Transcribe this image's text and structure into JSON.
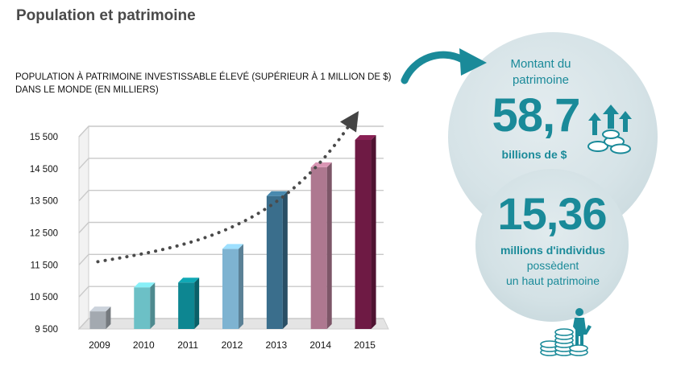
{
  "header": {
    "title": "Population et patrimoine"
  },
  "chart": {
    "title_line1": "POPULATION À PATRIMOINE INVESTISSABLE ÉLEVÉ (SUPÉRIEUR À 1 MILLION DE $)",
    "title_line2": "DANS LE MONDE (EN MILLIERS)"
  },
  "chart_data": {
    "type": "bar",
    "title": "POPULATION À PATRIMOINE INVESTISSABLE ÉLEVÉ (SUPÉRIEUR À 1 MILLION DE $) DANS LE MONDE (EN MILLIERS)",
    "categories": [
      "2009",
      "2010",
      "2011",
      "2012",
      "2013",
      "2014",
      "2015"
    ],
    "values": [
      10050,
      10800,
      10950,
      12000,
      13650,
      14550,
      15400
    ],
    "ylim": [
      9500,
      15500
    ],
    "yticks": [
      9500,
      10500,
      11500,
      12500,
      13500,
      14500,
      15500
    ],
    "ytick_labels": [
      "9 500",
      "10 500",
      "11 500",
      "12 500",
      "13 500",
      "14 500",
      "15 500"
    ],
    "grid": true,
    "bar_colors": [
      "#a3a9b0",
      "#6cc0c6",
      "#0d8691",
      "#7eb3d1",
      "#3a6e8c",
      "#ae7890",
      "#6e1a44"
    ],
    "trend_arrow": true
  },
  "stats": {
    "amount_label_line1": "Montant du",
    "amount_label_line2": "patrimoine",
    "amount_value": "58,7",
    "amount_unit": "billions de $",
    "people_value": "15,36",
    "people_unit": "millions d'individus",
    "people_line2": "possèdent",
    "people_line3": "un haut patrimoine",
    "accent_color": "#1a8a99"
  },
  "icons": [
    "curved-arrow-icon",
    "coins-rising-icon",
    "person-on-coins-icon"
  ]
}
